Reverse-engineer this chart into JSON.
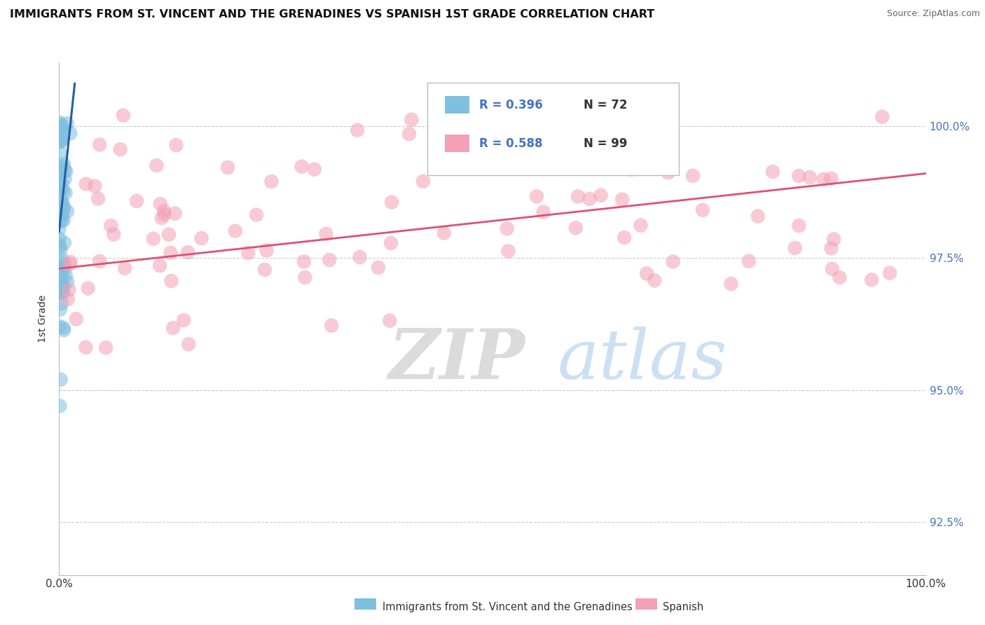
{
  "title": "IMMIGRANTS FROM ST. VINCENT AND THE GRENADINES VS SPANISH 1ST GRADE CORRELATION CHART",
  "source": "Source: ZipAtlas.com",
  "ylabel": "1st Grade",
  "ytick_labels": [
    "92.5%",
    "95.0%",
    "97.5%",
    "100.0%"
  ],
  "ytick_values": [
    92.5,
    95.0,
    97.5,
    100.0
  ],
  "xmin": 0.0,
  "xmax": 100.0,
  "ymin": 91.5,
  "ymax": 101.2,
  "blue_R": 0.396,
  "blue_N": 72,
  "pink_R": 0.588,
  "pink_N": 99,
  "blue_color": "#7fbfdf",
  "pink_color": "#f4a0b5",
  "blue_line_color": "#2060a0",
  "pink_line_color": "#e05070",
  "legend_label_blue": "Immigrants from St. Vincent and the Grenadines",
  "legend_label_pink": "Spanish",
  "watermark_zip": "ZIP",
  "watermark_atlas": "atlas",
  "bg_color": "#ffffff",
  "grid_color": "#cccccc",
  "blue_trend_x0": 0.0,
  "blue_trend_y0": 98.0,
  "blue_trend_x1": 1.8,
  "blue_trend_y1": 100.8,
  "pink_trend_x0": 0.0,
  "pink_trend_y0": 97.3,
  "pink_trend_x1": 100.0,
  "pink_trend_y1": 99.1
}
